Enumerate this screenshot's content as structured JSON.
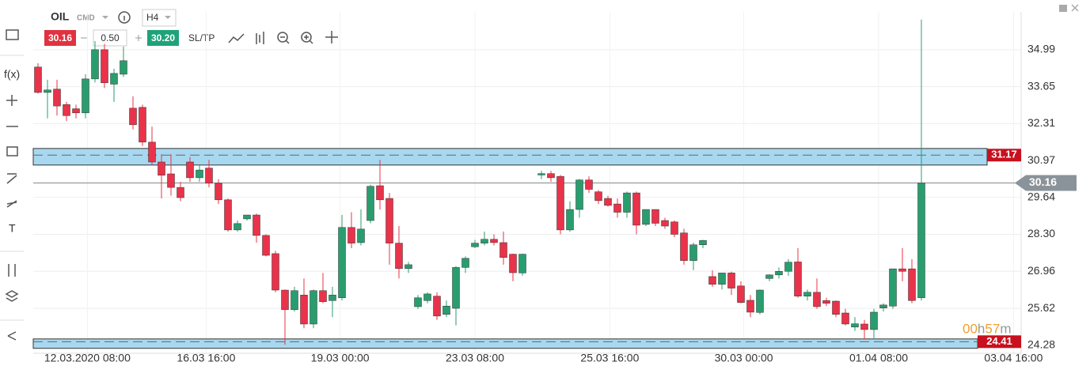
{
  "toolbar": {
    "symbol": "OIL",
    "group": "CMD",
    "timeframe": "H4",
    "bid": "30.16",
    "volume": "0.50",
    "ask": "30.20",
    "sltp": "SL/TP"
  },
  "sidebar": {
    "fx": "f(x)",
    "text": "T"
  },
  "chart_data": {
    "type": "candlestick",
    "up_color": "#2a9d6f",
    "down_color": "#e8334a",
    "ylim": [
      23.99,
      36.36
    ],
    "yticks": [
      34.99,
      33.65,
      32.31,
      30.97,
      29.64,
      {
        "value": 28.3,
        "label": "28.30"
      },
      26.96,
      25.62,
      24.28
    ],
    "xlim": [
      -0.5,
      103.5
    ],
    "xticks": [
      {
        "value": 5.2,
        "label": "12.03.2020 08:00"
      },
      {
        "value": 17.7,
        "label": "16.03 16:00"
      },
      {
        "value": 31.8,
        "label": "19.03 00:00"
      },
      {
        "value": 46,
        "label": "23.03 08:00"
      },
      {
        "value": 60.2,
        "label": "25.03 16:00"
      },
      {
        "value": 74.3,
        "label": "30.03 00:00"
      },
      {
        "value": 88.5,
        "label": "01.04 08:00"
      },
      {
        "value": 102.7,
        "label": "03.04 16:00"
      }
    ],
    "grid": true,
    "x": [
      0,
      1,
      2,
      3,
      4,
      5,
      6,
      7,
      8,
      9,
      10,
      11,
      12,
      13,
      14,
      15,
      16,
      17,
      18,
      19,
      20,
      21,
      22,
      23,
      24,
      25,
      26,
      27,
      28,
      29,
      30,
      31,
      32,
      33,
      34,
      35,
      36,
      37,
      38,
      39,
      40,
      41,
      42,
      43,
      44,
      45,
      46,
      47,
      48,
      49,
      50,
      51,
      53,
      54,
      55,
      56,
      57,
      58,
      59,
      60,
      61,
      62,
      63,
      64,
      65,
      66,
      67,
      68,
      69,
      70,
      71,
      72,
      73,
      74,
      75,
      76,
      77,
      78,
      79,
      80,
      81,
      82,
      83,
      84,
      85,
      86,
      87,
      88,
      89,
      90,
      91,
      92,
      93
    ],
    "open": [
      34.36,
      33.44,
      33.56,
      33.0,
      32.85,
      32.7,
      33.93,
      34.99,
      33.74,
      34.1,
      32.87,
      32.9,
      31.64,
      30.92,
      30.49,
      30.0,
      30.92,
      30.35,
      30.7,
      30.15,
      29.55,
      28.46,
      28.86,
      29.0,
      28.26,
      27.6,
      26.28,
      25.57,
      26.1,
      25.05,
      26.26,
      25.9,
      26.0,
      28.55,
      28.0,
      28.8,
      30.06,
      29.6,
      27.98,
      27.06,
      25.68,
      25.9,
      26.06,
      25.4,
      25.62,
      27.1,
      27.85,
      27.98,
      28.12,
      28.0,
      27.58,
      26.9,
      30.45,
      30.5,
      30.4,
      28.46,
      29.2,
      30.27,
      29.84,
      29.6,
      29.4,
      29.1,
      29.8,
      28.66,
      29.2,
      28.8,
      28.75,
      28.35,
      27.35,
      27.92,
      26.77,
      26.49,
      26.9,
      26.43,
      25.91,
      25.47,
      26.7,
      26.83,
      26.96,
      27.3,
      26.06,
      26.2,
      25.9,
      25.88,
      25.45,
      24.94,
      25.05,
      24.85,
      25.63,
      25.7,
      27.05,
      27.05,
      26.0
    ],
    "high": [
      34.5,
      33.9,
      33.9,
      33.1,
      33.0,
      34.1,
      35.3,
      35.2,
      34.3,
      35.1,
      33.3,
      33.0,
      32.2,
      31.2,
      31.2,
      30.2,
      31.1,
      30.8,
      31.0,
      30.3,
      29.6,
      28.8,
      29.0,
      29.05,
      28.3,
      27.7,
      26.3,
      26.4,
      26.7,
      26.3,
      26.9,
      26.4,
      29.0,
      29.1,
      29.2,
      30.1,
      31.0,
      29.8,
      28.6,
      27.3,
      26.1,
      26.2,
      26.2,
      25.9,
      27.15,
      27.5,
      28.1,
      28.4,
      28.3,
      28.4,
      27.6,
      27.6,
      30.6,
      30.6,
      30.45,
      29.5,
      30.3,
      30.4,
      29.9,
      29.7,
      29.6,
      29.85,
      29.85,
      29.2,
      29.2,
      28.9,
      28.8,
      28.5,
      28.0,
      28.1,
      27.0,
      26.9,
      26.95,
      26.6,
      26.1,
      26.3,
      26.85,
      27.1,
      27.4,
      27.8,
      26.3,
      26.7,
      26.0,
      25.9,
      25.6,
      25.3,
      25.2,
      25.6,
      25.8,
      27.05,
      27.8,
      27.4,
      36.08
    ],
    "low": [
      33.4,
      32.5,
      32.6,
      32.4,
      32.5,
      32.5,
      33.8,
      33.6,
      33.1,
      34.0,
      32.1,
      31.5,
      30.8,
      29.6,
      29.7,
      29.5,
      30.2,
      30.2,
      30.0,
      29.4,
      28.4,
      28.4,
      28.8,
      28.0,
      27.5,
      26.2,
      24.3,
      25.5,
      24.9,
      24.9,
      25.8,
      25.3,
      25.9,
      27.8,
      27.9,
      28.7,
      29.2,
      27.2,
      26.7,
      26.9,
      25.6,
      25.8,
      25.2,
      25.3,
      25.0,
      26.9,
      27.8,
      27.9,
      27.9,
      27.2,
      26.6,
      26.8,
      30.3,
      30.2,
      28.3,
      28.4,
      28.9,
      29.8,
      29.4,
      29.3,
      28.9,
      28.9,
      28.3,
      28.6,
      28.6,
      28.5,
      28.2,
      27.2,
      27.0,
      27.8,
      26.4,
      26.3,
      26.1,
      25.8,
      25.3,
      25.4,
      26.6,
      26.7,
      26.8,
      26.0,
      25.9,
      25.6,
      25.7,
      25.3,
      25.0,
      24.8,
      24.5,
      24.5,
      25.5,
      25.6,
      26.6,
      25.8,
      25.9
    ],
    "close": [
      33.44,
      33.53,
      32.95,
      32.6,
      32.7,
      33.93,
      34.99,
      33.79,
      34.13,
      34.59,
      32.27,
      31.64,
      30.92,
      30.44,
      30.0,
      29.63,
      30.35,
      30.63,
      30.15,
      29.55,
      28.46,
      28.69,
      29.0,
      28.26,
      27.54,
      26.28,
      25.57,
      26.26,
      25.05,
      26.26,
      25.86,
      26.1,
      28.55,
      27.98,
      28.49,
      30.04,
      29.55,
      27.98,
      27.06,
      27.2,
      26.0,
      26.14,
      25.34,
      25.7,
      27.1,
      27.43,
      27.98,
      28.12,
      28.0,
      27.46,
      26.91,
      27.58,
      30.5,
      30.35,
      28.46,
      29.2,
      30.27,
      29.93,
      29.52,
      29.35,
      29.1,
      29.8,
      28.63,
      29.2,
      28.7,
      28.6,
      28.3,
      27.35,
      27.92,
      28.08,
      26.49,
      26.9,
      26.35,
      25.83,
      25.48,
      26.28,
      26.83,
      26.96,
      27.29,
      26.06,
      26.2,
      25.68,
      25.8,
      25.4,
      25.05,
      25.06,
      24.85,
      25.48,
      25.74,
      27.05,
      26.96,
      25.9,
      30.16
    ],
    "levels": [
      {
        "value": 31.17,
        "top": 31.41,
        "bottom": 30.81
      },
      {
        "value": 24.41,
        "top": 24.51,
        "bottom": 24.17
      }
    ],
    "last_price": 30.16,
    "countdown": [
      "00",
      "h",
      "57",
      "m"
    ]
  }
}
